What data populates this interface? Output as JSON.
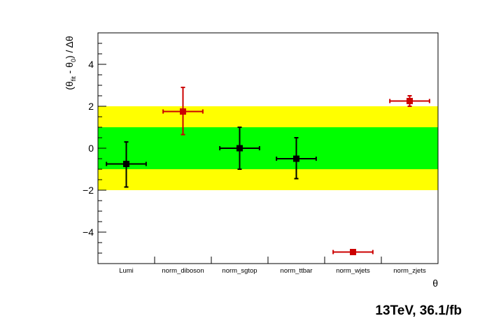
{
  "chart_data": {
    "type": "scatter",
    "categories": [
      "Lumi",
      "norm_diboson",
      "norm_sgtop",
      "norm_ttbar",
      "norm_wjets",
      "norm_zjets"
    ],
    "series": [
      {
        "points": [
          {
            "category": "Lumi",
            "y": -0.75,
            "yerr_low": 1.1,
            "yerr_high": 1.05,
            "color": "#000000"
          },
          {
            "category": "norm_diboson",
            "y": 1.75,
            "yerr_low": 1.1,
            "yerr_high": 1.15,
            "color": "#cc0000"
          },
          {
            "category": "norm_sgtop",
            "y": 0.0,
            "yerr_low": 1.0,
            "yerr_high": 1.0,
            "color": "#000000"
          },
          {
            "category": "norm_ttbar",
            "y": -0.5,
            "yerr_low": 0.95,
            "yerr_high": 1.0,
            "color": "#000000"
          },
          {
            "category": "norm_wjets",
            "y": -4.95,
            "yerr_low": 0.1,
            "yerr_high": 0.1,
            "color": "#cc0000"
          },
          {
            "category": "norm_zjets",
            "y": 2.25,
            "yerr_low": 0.25,
            "yerr_high": 0.25,
            "color": "#cc0000"
          }
        ]
      }
    ],
    "bands": [
      {
        "from": -2,
        "to": 2,
        "color": "#ffff00"
      },
      {
        "from": -1,
        "to": 1,
        "color": "#00ff00"
      }
    ],
    "ylim": [
      -5.5,
      5.5
    ],
    "yticks": [
      -4,
      -2,
      0,
      2,
      4
    ],
    "ytick_labels": [
      "−4",
      "−2",
      "0",
      "2",
      "4"
    ],
    "xlabel": "θ",
    "ylabel": "(θfit - θ0) / Δθ",
    "ylabel_parts": {
      "open": "(θ",
      "sub1": "fit",
      "mid": " - θ",
      "sub2": "0",
      "close": ") / Δθ"
    },
    "grid": false,
    "caption": "13TeV, 36.1/fb"
  }
}
